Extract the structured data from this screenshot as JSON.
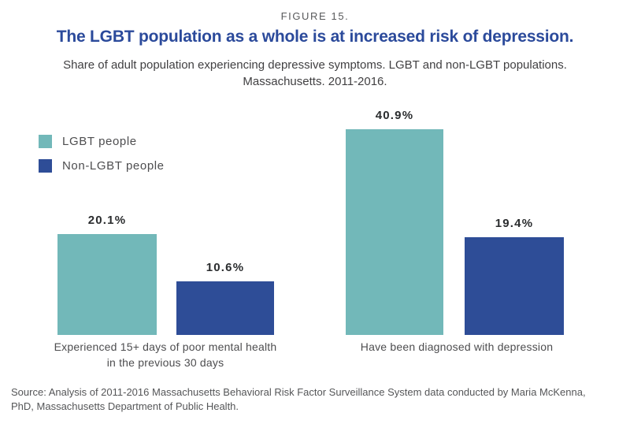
{
  "figure": {
    "label": "FIGURE 15.",
    "title": "The LGBT population as a whole is at increased risk of depression.",
    "subtitle_line1": "Share of adult population experiencing depressive symptoms. LGBT and non-LGBT populations.",
    "subtitle_line2": "Massachusetts. 2011-2016."
  },
  "legend": {
    "items": [
      {
        "label": "LGBT people",
        "color": "#72b8b9"
      },
      {
        "label": "Non-LGBT people",
        "color": "#2e4d97"
      }
    ]
  },
  "chart_data": {
    "type": "bar",
    "title": "The LGBT population as a whole is at increased risk of depression.",
    "subtitle": "Share of adult population experiencing depressive symptoms. LGBT and non-LGBT populations. Massachusetts. 2011-2016.",
    "categories": [
      "Experienced 15+ days of poor mental health in the previous 30 days",
      "Have been diagnosed with depression"
    ],
    "series": [
      {
        "name": "LGBT people",
        "color": "#72b8b9",
        "values": [
          20.1,
          40.9
        ]
      },
      {
        "name": "Non-LGBT people",
        "color": "#2e4d97",
        "values": [
          10.6,
          19.4
        ]
      }
    ],
    "value_labels": [
      "20.1%",
      "10.6%",
      "40.9%",
      "19.4%"
    ],
    "ylim": [
      0,
      45
    ],
    "grid": false,
    "axes_shown": false,
    "legend_position": "upper-left",
    "xlabel": "",
    "ylabel": ""
  },
  "axis": {
    "group1_label_line1": "Experienced 15+ days of poor mental health",
    "group1_label_line2": "in the previous 30 days",
    "group2_label": "Have been diagnosed with depression"
  },
  "source": {
    "text": "Source: Analysis of 2011-2016 Massachusetts Behavioral Risk Factor Surveillance System data conducted by Maria McKenna, PhD, Massachusetts Department of Public Health."
  },
  "colors": {
    "teal": "#72b8b9",
    "blue": "#2e4d97",
    "title_blue": "#2b4a9b",
    "gray_text": "#58595b",
    "dark_text": "#2a2c2e"
  }
}
